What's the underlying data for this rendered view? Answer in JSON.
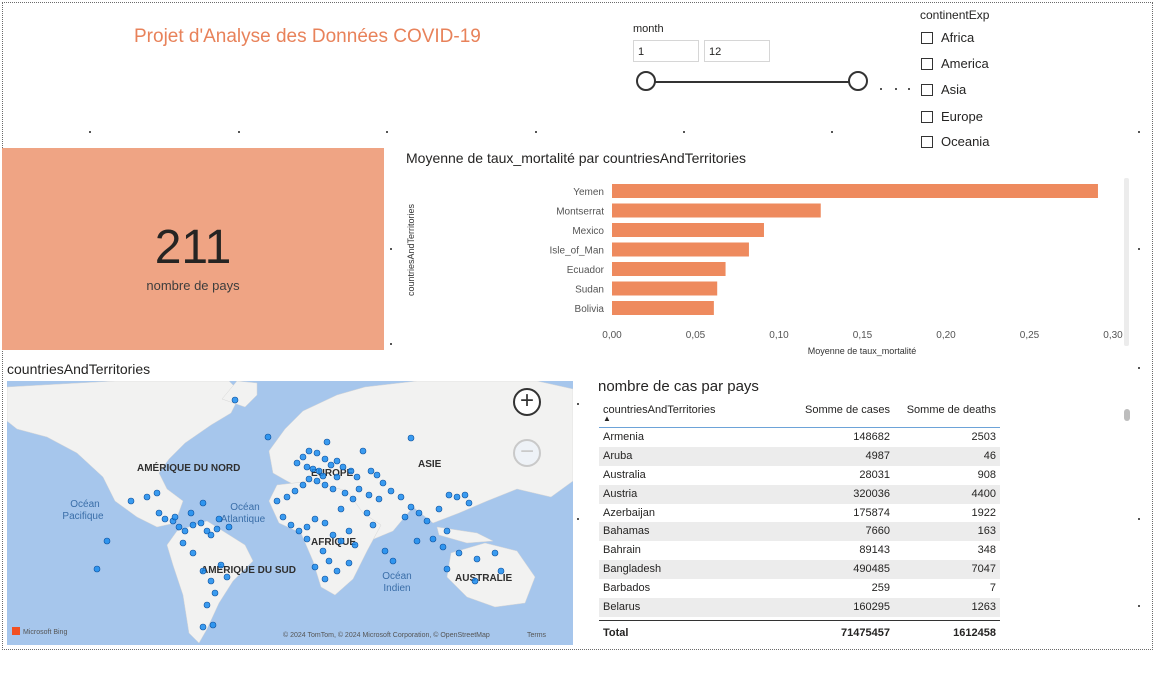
{
  "report": {
    "title": "Projet d'Analyse des Données COVID-19"
  },
  "month_slicer": {
    "label": "month",
    "min_value": "1",
    "max_value": "12"
  },
  "continent_slicer": {
    "label": "continentExp",
    "options": [
      "Africa",
      "America",
      "Asia",
      "Europe",
      "Oceania"
    ]
  },
  "kpi": {
    "value": "211",
    "label": "nombre de pays"
  },
  "bar_chart": {
    "title": "Moyenne de taux_mortalité par countriesAndTerritories"
  },
  "chart_data": {
    "type": "bar",
    "orientation": "horizontal",
    "title": "Moyenne de taux_mortalité par countriesAndTerritories",
    "categories": [
      "Yemen",
      "Montserrat",
      "Mexico",
      "Isle_of_Man",
      "Ecuador",
      "Sudan",
      "Bolivia"
    ],
    "values": [
      0.291,
      0.125,
      0.091,
      0.082,
      0.068,
      0.063,
      0.061
    ],
    "xlabel": "Moyenne de taux_mortalité",
    "ylabel": "countriesAndTerritories",
    "xlim": [
      0,
      0.3
    ],
    "xticks": [
      "0,00",
      "0,05",
      "0,10",
      "0,15",
      "0,20",
      "0,25",
      "0,30"
    ],
    "color": "#ee8a5e",
    "grid": false
  },
  "map": {
    "title": "countriesAndTerritories",
    "labels": {
      "north_america": "AMÉRIQUE DU NORD",
      "europe": "EUROPE",
      "asia": "ASIE",
      "africa": "AFRIQUE",
      "south_america": "AMÉRIQUE DU SUD",
      "australia": "AUSTRALIE",
      "pacific_1": "Océan",
      "pacific_2": "Pacifique",
      "atlantic_1": "Océan",
      "atlantic_2": "Atlantique",
      "indian_1": "Océan",
      "indian_2": "Indien"
    },
    "attribution": "© 2024 TomTom, © 2024 Microsoft Corporation, © OpenStreetMap",
    "terms": "Terms",
    "bing_label": "Microsoft Bing",
    "zoom_in": "+",
    "zoom_out": "−",
    "land_color": "#f2f2f1",
    "water_color": "#a6c6ec",
    "bubble_color": "#1a8cf0"
  },
  "table": {
    "title": "nombre de cas par pays",
    "columns": [
      "countriesAndTerritories",
      "Somme de cases",
      "Somme de deaths"
    ],
    "sort_indicator": "▲",
    "rows": [
      [
        "Armenia",
        "148682",
        "2503"
      ],
      [
        "Aruba",
        "4987",
        "46"
      ],
      [
        "Australia",
        "28031",
        "908"
      ],
      [
        "Austria",
        "320036",
        "4400"
      ],
      [
        "Azerbaijan",
        "175874",
        "1922"
      ],
      [
        "Bahamas",
        "7660",
        "163"
      ],
      [
        "Bahrain",
        "89143",
        "348"
      ],
      [
        "Bangladesh",
        "490485",
        "7047"
      ],
      [
        "Barbados",
        "259",
        "7"
      ],
      [
        "Belarus",
        "160295",
        "1263"
      ]
    ],
    "total": [
      "Total",
      "71475457",
      "1612458"
    ]
  }
}
